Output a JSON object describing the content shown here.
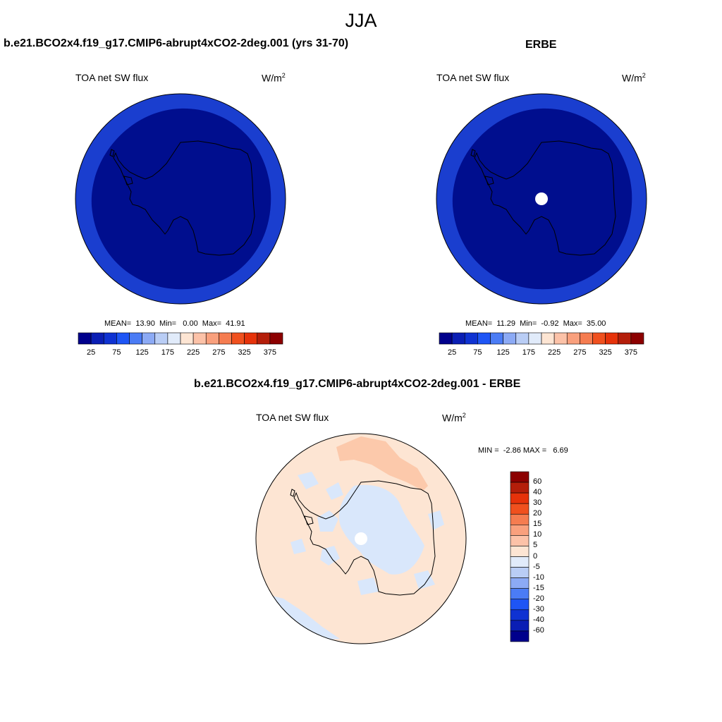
{
  "page": {
    "main_title": "JJA",
    "difference_title": "b.e21.BCO2x4.f19_g17.CMIP6-abrupt4xCO2-2deg.001 - ERBE"
  },
  "panels": [
    {
      "title": "b.e21.BCO2x4.f19_g17.CMIP6-abrupt4xCO2-2deg.001 (yrs 31-70)",
      "variable": "TOA net SW flux",
      "unit": "W/m",
      "unit_sup": "2",
      "stats": "MEAN=  13.90  Min=   0.00  Max=  41.91",
      "fill_outer": "#1a3ecf",
      "fill_inner": "#000e8e",
      "pole_hole": false
    },
    {
      "title": "ERBE",
      "variable": "TOA net SW flux",
      "unit": "W/m",
      "unit_sup": "2",
      "stats": "MEAN=  11.29  Min=  -0.92  Max=  35.00",
      "fill_outer": "#1a3ecf",
      "fill_inner": "#000e8e",
      "pole_hole": true
    }
  ],
  "colorbar_horizontal": {
    "colors": [
      "#00008c",
      "#0a1eb4",
      "#0f32d2",
      "#1e55f5",
      "#4b7cf5",
      "#8caaf5",
      "#b9cdf5",
      "#e1ebfa",
      "#fde5d3",
      "#fcc2a8",
      "#f9a07d",
      "#f57c50",
      "#f0501e",
      "#e6320a",
      "#b41e0a",
      "#8c0000"
    ],
    "labels": [
      "25",
      "75",
      "125",
      "175",
      "225",
      "275",
      "325",
      "375"
    ]
  },
  "difference": {
    "variable": "TOA net SW flux",
    "unit": "W/m",
    "unit_sup": "2",
    "minmax": "MIN =  -2.86 MAX =   6.69",
    "fill_positive": "#fde5d3",
    "fill_negative": "#d9e7fb",
    "fill_strong_positive": "#fcc9ab"
  },
  "colorbar_vertical": {
    "colors": [
      "#8c0000",
      "#b41e0a",
      "#e6320a",
      "#f0501e",
      "#f57c50",
      "#f9a07d",
      "#fcc2a8",
      "#fde5d3",
      "#e1ebfa",
      "#b9cdf5",
      "#8caaf5",
      "#4b7cf5",
      "#1e55f5",
      "#0f32d2",
      "#0a1eb4",
      "#00008c"
    ],
    "labels": [
      "60",
      "40",
      "30",
      "20",
      "15",
      "10",
      "5",
      "0",
      "-5",
      "-10",
      "-15",
      "-20",
      "-30",
      "-40",
      "-60"
    ]
  }
}
